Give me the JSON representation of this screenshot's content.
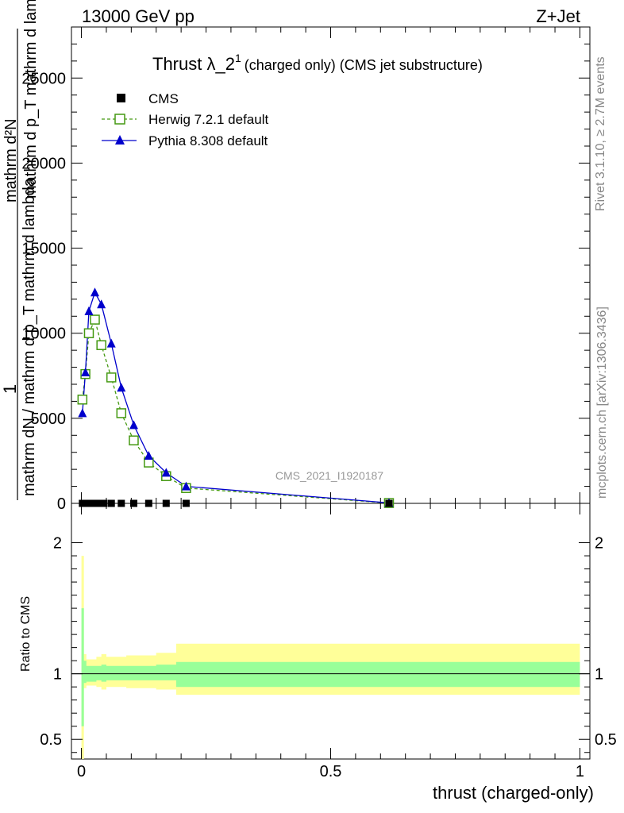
{
  "header": {
    "left": "13000 GeV pp",
    "right": "Z+Jet"
  },
  "plot": {
    "title_main": "Thrust λ_2",
    "title_sup": "1",
    "title_rest": "(charged only) (CMS jet substructure)",
    "ylabel_numerator": "1",
    "ylabel_line1": "mathrm dN / mathrm d p_T mathrm d lambda",
    "ylabel_sub_T": "T",
    "ylabel_line0": "mathrm d²N",
    "ylabel_line2": "mathrm d p_T mathrm d lambda",
    "watermark": "CMS_2021_I1920187"
  },
  "ratio": {
    "ylabel": "Ratio to CMS"
  },
  "xaxis": {
    "label": "thrust (charged-only)"
  },
  "side": {
    "rivet": "Rivet 3.1.10, ≥ 2.7M events",
    "mcplots": "mcplots.cern.ch [arXiv:1306.3436]"
  },
  "colors": {
    "herwig": "#449911",
    "pythia": "#0000cc",
    "cms": "#000000",
    "band_inner": "#99ff99",
    "band_outer": "#ffff99"
  },
  "chart_data": [
    {
      "type": "line",
      "panel": "main",
      "xlim": [
        -0.02,
        1.02
      ],
      "ylim": [
        0,
        28000
      ],
      "yticks": [
        0,
        5000,
        10000,
        15000,
        20000,
        25000
      ],
      "ytick_labels": [
        "0",
        "5000",
        "10000",
        "15000",
        "20000",
        "25000"
      ],
      "legend_position": "top-left",
      "series": [
        {
          "name": "CMS",
          "marker": "square",
          "x": [
            0.002,
            0.008,
            0.015,
            0.023,
            0.033,
            0.045,
            0.06,
            0.08,
            0.105,
            0.135,
            0.17,
            0.21,
            0.617
          ],
          "y": [
            0,
            0,
            0,
            0,
            0,
            0,
            0,
            0,
            0,
            0,
            0,
            0,
            0
          ]
        },
        {
          "name": "Herwig 7.2.1 default",
          "marker": "open-square",
          "x": [
            0.002,
            0.008,
            0.015,
            0.027,
            0.04,
            0.06,
            0.08,
            0.105,
            0.135,
            0.17,
            0.21,
            0.617
          ],
          "y": [
            6100,
            7600,
            10000,
            10800,
            9300,
            7400,
            5300,
            3700,
            2400,
            1600,
            900,
            20
          ]
        },
        {
          "name": "Pythia 8.308 default",
          "marker": "triangle",
          "x": [
            0.002,
            0.008,
            0.015,
            0.027,
            0.04,
            0.06,
            0.08,
            0.105,
            0.135,
            0.17,
            0.21,
            0.617
          ],
          "y": [
            5300,
            7700,
            11300,
            12400,
            11700,
            9400,
            6800,
            4600,
            2800,
            1800,
            1000,
            30
          ]
        }
      ]
    },
    {
      "type": "area",
      "panel": "ratio",
      "xlim": [
        -0.02,
        1.02
      ],
      "ylim": [
        0.35,
        2.3
      ],
      "yticks": [
        0.5,
        1,
        2
      ],
      "ytick_labels": [
        "0.5",
        "1",
        "2"
      ],
      "xticks": [
        0,
        0.5,
        1
      ],
      "xtick_labels": [
        "0",
        "0.5",
        "1"
      ],
      "bin_edges": [
        0.0,
        0.005,
        0.01,
        0.02,
        0.03,
        0.04,
        0.05,
        0.07,
        0.09,
        0.12,
        0.15,
        0.19,
        0.23,
        1.0
      ],
      "inner_band": {
        "low": [
          0.6,
          0.93,
          0.94,
          0.94,
          0.95,
          0.94,
          0.95,
          0.95,
          0.95,
          0.95,
          0.95,
          0.9,
          0.9
        ],
        "high": [
          1.5,
          1.1,
          1.06,
          1.06,
          1.06,
          1.07,
          1.06,
          1.06,
          1.06,
          1.06,
          1.07,
          1.09,
          1.09
        ]
      },
      "outer_band": {
        "low": [
          0.35,
          0.89,
          0.91,
          0.91,
          0.9,
          0.88,
          0.9,
          0.9,
          0.89,
          0.89,
          0.88,
          0.84,
          0.84
        ],
        "high": [
          1.9,
          1.15,
          1.11,
          1.11,
          1.13,
          1.15,
          1.13,
          1.13,
          1.14,
          1.14,
          1.16,
          1.23,
          1.23
        ]
      },
      "reference_line": 1
    }
  ]
}
